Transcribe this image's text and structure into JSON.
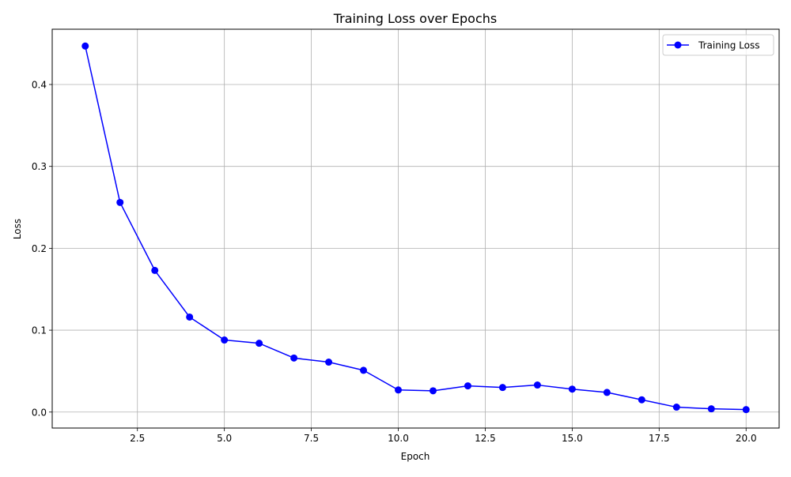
{
  "chart_data": {
    "type": "line",
    "title": "Training Loss over Epochs",
    "xlabel": "Epoch",
    "ylabel": "Loss",
    "xlim": [
      0.05,
      20.95
    ],
    "ylim": [
      -0.0195,
      0.4675
    ],
    "x_ticks": [
      2.5,
      5.0,
      7.5,
      10.0,
      12.5,
      15.0,
      17.5,
      20.0
    ],
    "x_tick_labels": [
      "2.5",
      "5.0",
      "7.5",
      "10.0",
      "12.5",
      "15.0",
      "17.5",
      "20.0"
    ],
    "y_ticks": [
      0.0,
      0.1,
      0.2,
      0.3,
      0.4
    ],
    "y_tick_labels": [
      "0.0",
      "0.1",
      "0.2",
      "0.3",
      "0.4"
    ],
    "grid": true,
    "legend_position": "top-right",
    "series": [
      {
        "name": "Training Loss",
        "color": "#0000ff",
        "marker": "circle",
        "x": [
          1,
          2,
          3,
          4,
          5,
          6,
          7,
          8,
          9,
          10,
          11,
          12,
          13,
          14,
          15,
          16,
          17,
          18,
          19,
          20
        ],
        "y": [
          0.447,
          0.256,
          0.173,
          0.116,
          0.088,
          0.084,
          0.066,
          0.061,
          0.051,
          0.027,
          0.026,
          0.032,
          0.03,
          0.033,
          0.028,
          0.024,
          0.015,
          0.006,
          0.004,
          0.003
        ]
      }
    ]
  }
}
